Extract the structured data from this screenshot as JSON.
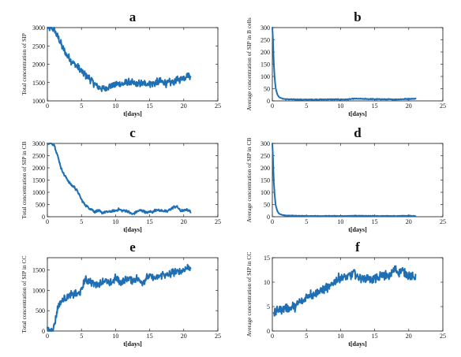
{
  "colors": {
    "series": "#1f6fb5",
    "axis": "#111111"
  },
  "chart_data": [
    {
      "panel": "a",
      "type": "line",
      "title": "a",
      "xlabel": "t[days]",
      "ylabel": "Total concentration of SIP",
      "xlim": [
        0,
        25
      ],
      "ylim": [
        1000,
        3000
      ],
      "xticks": [
        0,
        5,
        10,
        15,
        20,
        25
      ],
      "yticks": [
        1000,
        1500,
        2000,
        2500,
        3000
      ],
      "series": [
        {
          "x": [
            0,
            0.5,
            1,
            1.5,
            2,
            2.5,
            3,
            3.5,
            4,
            4.5,
            5,
            5.5,
            6,
            6.5,
            7,
            7.5,
            8,
            8.5,
            9,
            9.5,
            10,
            10.5,
            11,
            11.5,
            12,
            12.5,
            13,
            13.5,
            14,
            14.5,
            15,
            15.5,
            16,
            16.5,
            17,
            17.5,
            18,
            18.5,
            19,
            19.5,
            20,
            20.5,
            21
          ],
          "y": [
            3000,
            3000,
            2950,
            2750,
            2550,
            2350,
            2200,
            2100,
            2000,
            1900,
            1800,
            1720,
            1650,
            1550,
            1450,
            1380,
            1350,
            1320,
            1400,
            1420,
            1450,
            1450,
            1460,
            1480,
            1500,
            1480,
            1460,
            1460,
            1470,
            1480,
            1480,
            1480,
            1500,
            1520,
            1500,
            1480,
            1500,
            1520,
            1550,
            1600,
            1650,
            1700,
            1700
          ],
          "noise": 120
        }
      ]
    },
    {
      "panel": "b",
      "type": "line",
      "title": "b",
      "xlabel": "t[days]",
      "ylabel": "Average concentration of SIP in B cells",
      "xlim": [
        0,
        25
      ],
      "ylim": [
        0,
        300
      ],
      "xticks": [
        0,
        5,
        10,
        15,
        20,
        25
      ],
      "yticks": [
        0,
        50,
        100,
        150,
        200,
        250,
        300
      ],
      "series": [
        {
          "x": [
            0,
            0.1,
            0.2,
            0.35,
            0.5,
            0.75,
            1,
            1.5,
            2,
            3,
            5,
            8,
            11,
            12,
            15,
            18,
            20,
            21
          ],
          "y": [
            300,
            250,
            160,
            90,
            50,
            25,
            15,
            9,
            7,
            6,
            5,
            6,
            6,
            9,
            7,
            6,
            8,
            9
          ],
          "noise": 2
        }
      ]
    },
    {
      "panel": "c",
      "type": "line",
      "title": "c",
      "xlabel": "t[days]",
      "ylabel": "Total concentration of SIP in CB",
      "xlim": [
        0,
        25
      ],
      "ylim": [
        0,
        3000
      ],
      "xticks": [
        0,
        5,
        10,
        15,
        20,
        25
      ],
      "yticks": [
        0,
        500,
        1000,
        1500,
        2000,
        2500,
        3000
      ],
      "series": [
        {
          "x": [
            0,
            0.5,
            1,
            1.5,
            2,
            2.5,
            3,
            3.5,
            4,
            4.5,
            5,
            5.5,
            6,
            6.5,
            7,
            7.5,
            8,
            8.5,
            9,
            9.5,
            10,
            10.5,
            11,
            11.5,
            12,
            12.5,
            13,
            13.5,
            14,
            14.5,
            15,
            15.5,
            16,
            16.5,
            17,
            17.5,
            18,
            18.5,
            19,
            19.5,
            20,
            20.5,
            21
          ],
          "y": [
            3000,
            3000,
            2950,
            2500,
            2000,
            1700,
            1500,
            1300,
            1200,
            1000,
            700,
            500,
            380,
            300,
            200,
            250,
            150,
            200,
            200,
            220,
            250,
            300,
            250,
            250,
            180,
            100,
            200,
            250,
            250,
            150,
            200,
            200,
            300,
            250,
            250,
            200,
            300,
            400,
            420,
            250,
            250,
            300,
            200
          ],
          "noise": 60
        }
      ]
    },
    {
      "panel": "d",
      "type": "line",
      "title": "d",
      "xlabel": "t[days]",
      "ylabel": "Average concentration of SIP in CB",
      "xlim": [
        0,
        25
      ],
      "ylim": [
        0,
        300
      ],
      "xticks": [
        0,
        5,
        10,
        15,
        20,
        25
      ],
      "yticks": [
        0,
        50,
        100,
        150,
        200,
        250,
        300
      ],
      "series": [
        {
          "x": [
            0,
            0.1,
            0.2,
            0.35,
            0.5,
            0.75,
            1,
            1.5,
            2,
            3,
            5,
            8,
            11,
            12,
            15,
            18,
            20,
            21
          ],
          "y": [
            300,
            240,
            150,
            85,
            45,
            22,
            12,
            7,
            5,
            4,
            3,
            3,
            3,
            4,
            3,
            3,
            4,
            3
          ],
          "noise": 1.5
        }
      ]
    },
    {
      "panel": "e",
      "type": "line",
      "title": "e",
      "xlabel": "t[days]",
      "ylabel": "Total concentration of SIP in CC",
      "xlim": [
        0,
        25
      ],
      "ylim": [
        0,
        1800
      ],
      "xticks": [
        0,
        5,
        10,
        15,
        20,
        25
      ],
      "yticks": [
        0,
        500,
        1000,
        1500
      ],
      "series": [
        {
          "x": [
            0,
            0.3,
            0.6,
            1,
            1.3,
            1.6,
            2,
            2.5,
            3,
            3.5,
            4,
            4.5,
            5,
            5.5,
            6,
            6.5,
            7,
            7.5,
            8,
            8.5,
            9,
            9.5,
            10,
            10.5,
            11,
            11.5,
            12,
            12.5,
            13,
            13.5,
            14,
            14.5,
            15,
            15.5,
            16,
            16.5,
            17,
            17.5,
            18,
            18.5,
            19,
            19.5,
            20,
            20.5,
            21
          ],
          "y": [
            0,
            0,
            30,
            120,
            400,
            600,
            720,
            800,
            850,
            880,
            900,
            900,
            1000,
            1250,
            1250,
            1200,
            1150,
            1150,
            1200,
            1250,
            1150,
            1200,
            1300,
            1200,
            1200,
            1250,
            1300,
            1250,
            1300,
            1250,
            1200,
            1300,
            1350,
            1300,
            1300,
            1350,
            1400,
            1350,
            1400,
            1450,
            1450,
            1450,
            1500,
            1550,
            1580
          ],
          "noise": 110
        }
      ]
    },
    {
      "panel": "f",
      "type": "line",
      "title": "f",
      "xlabel": "t[days]",
      "ylabel": "Average concentration of SIP in CC",
      "xlim": [
        0,
        25
      ],
      "ylim": [
        0,
        15
      ],
      "xticks": [
        0,
        5,
        10,
        15,
        20,
        25
      ],
      "yticks": [
        0,
        5,
        10,
        15
      ],
      "series": [
        {
          "x": [
            0.2,
            0.5,
            1,
            1.5,
            2,
            2.5,
            3,
            3.5,
            4,
            4.5,
            5,
            5.5,
            6,
            6.5,
            7,
            7.5,
            8,
            8.5,
            9,
            9.5,
            10,
            10.5,
            11,
            11.5,
            12,
            12.5,
            13,
            13.5,
            14,
            14.5,
            15,
            15.5,
            16,
            16.5,
            17,
            17.5,
            18,
            18.5,
            19,
            19.5,
            20,
            20.5,
            21
          ],
          "y": [
            3,
            4,
            4.5,
            4.5,
            5,
            4.5,
            5,
            5,
            6,
            6,
            7,
            7.5,
            7.5,
            8,
            8,
            8.5,
            9,
            9,
            10,
            10.5,
            11,
            11,
            11,
            11.5,
            12,
            11,
            11,
            10.5,
            11,
            10.5,
            11,
            10.5,
            11.5,
            11.5,
            11,
            12,
            12.5,
            12,
            12.5,
            11.5,
            11.5,
            11,
            11
          ],
          "noise": 1.1
        }
      ]
    }
  ]
}
